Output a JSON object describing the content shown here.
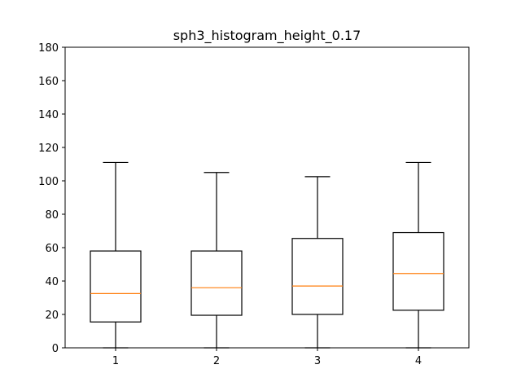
{
  "chart_data": {
    "type": "boxplot",
    "title": "sph3_histogram_height_0.17",
    "xlabel": "",
    "ylabel": "",
    "ylim": [
      0,
      180
    ],
    "yticks": [
      0,
      20,
      40,
      60,
      80,
      100,
      120,
      140,
      160,
      180
    ],
    "categories": [
      "1",
      "2",
      "3",
      "4"
    ],
    "boxes": [
      {
        "label": "1",
        "whisker_low": 0,
        "q1": 15.5,
        "median": 32.5,
        "q3": 58,
        "whisker_high": 111
      },
      {
        "label": "2",
        "whisker_low": 0,
        "q1": 19.5,
        "median": 36,
        "q3": 58,
        "whisker_high": 105
      },
      {
        "label": "3",
        "whisker_low": 0,
        "q1": 20,
        "median": 37,
        "q3": 65.5,
        "whisker_high": 102.5
      },
      {
        "label": "4",
        "whisker_low": 0,
        "q1": 22.5,
        "median": 44.5,
        "q3": 69,
        "whisker_high": 111
      }
    ],
    "grid": false,
    "colors": {
      "box": "#000000",
      "median": "#ff7f0e",
      "background": "#ffffff"
    }
  }
}
